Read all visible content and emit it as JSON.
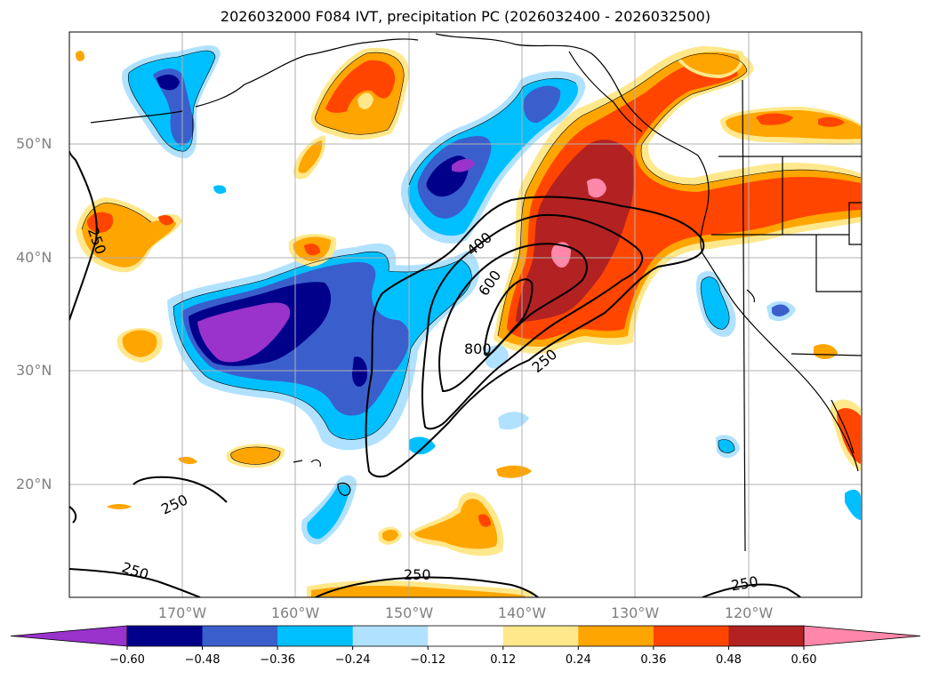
{
  "title": "2026032000 F084 IVT, precipitation PC (2026032400 - 2026032500)",
  "map": {
    "lat_labels": [
      "50°N",
      "40°N",
      "30°N",
      "20°N"
    ],
    "lon_labels": [
      "170°W",
      "160°W",
      "150°W",
      "140°W",
      "130°W",
      "120°W"
    ],
    "ivt_contour_labels": [
      "250",
      "400",
      "600",
      "800",
      "250",
      "250",
      "250",
      "250",
      "250"
    ]
  },
  "colorbar": {
    "ticks": [
      "−0.60",
      "−0.48",
      "−0.36",
      "−0.24",
      "−0.12",
      "0.12",
      "0.24",
      "0.36",
      "0.48",
      "0.60"
    ],
    "colors": [
      "#9933cc",
      "#00008b",
      "#3a5fcd",
      "#00bfff",
      "#b0e2ff",
      "#ffffff",
      "#ffe88c",
      "#ffa500",
      "#ff4500",
      "#b22222",
      "#ff88aa"
    ]
  }
}
